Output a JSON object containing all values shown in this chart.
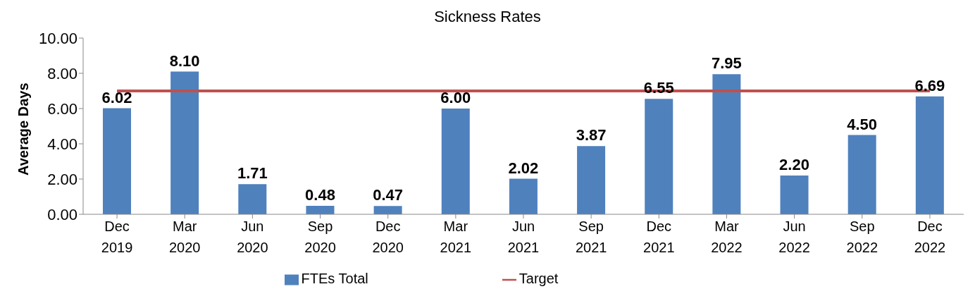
{
  "chart_data": {
    "type": "bar",
    "title": "Sickness Rates",
    "ylabel": "Average Days",
    "categories": [
      "Dec 2019",
      "Mar 2020",
      "Jun 2020",
      "Sep 2020",
      "Dec 2020",
      "Mar 2021",
      "Jun 2021",
      "Sep 2021",
      "Dec 2021",
      "Mar 2022",
      "Jun 2022",
      "Sep 2022",
      "Dec 2022"
    ],
    "series": [
      {
        "name": "FTEs Total",
        "color": "#4f81bd",
        "values": [
          6.02,
          8.1,
          1.71,
          0.48,
          0.47,
          6.0,
          2.02,
          3.87,
          6.55,
          7.95,
          2.2,
          4.5,
          6.69
        ],
        "value_labels": [
          "6.02",
          "8.10",
          "1.71",
          "0.48",
          "0.47",
          "6.00",
          "2.02",
          "3.87",
          "6.55",
          "7.95",
          "2.20",
          "4.50",
          "6.69"
        ]
      },
      {
        "name": "Target",
        "type": "line",
        "color": "#c0504d",
        "values": [
          7,
          7,
          7,
          7,
          7,
          7,
          7,
          7,
          7,
          7,
          7,
          7,
          7
        ]
      }
    ],
    "ylim": [
      0,
      10
    ],
    "yticks": [
      {
        "value": 0,
        "label": "0.00"
      },
      {
        "value": 2,
        "label": "2.00"
      },
      {
        "value": 4,
        "label": "4.00"
      },
      {
        "value": 6,
        "label": "6.00"
      },
      {
        "value": 8,
        "label": "8.00"
      },
      {
        "value": 10,
        "label": "10.00"
      }
    ],
    "grid": false,
    "legend": "bottom",
    "marker": "none"
  }
}
